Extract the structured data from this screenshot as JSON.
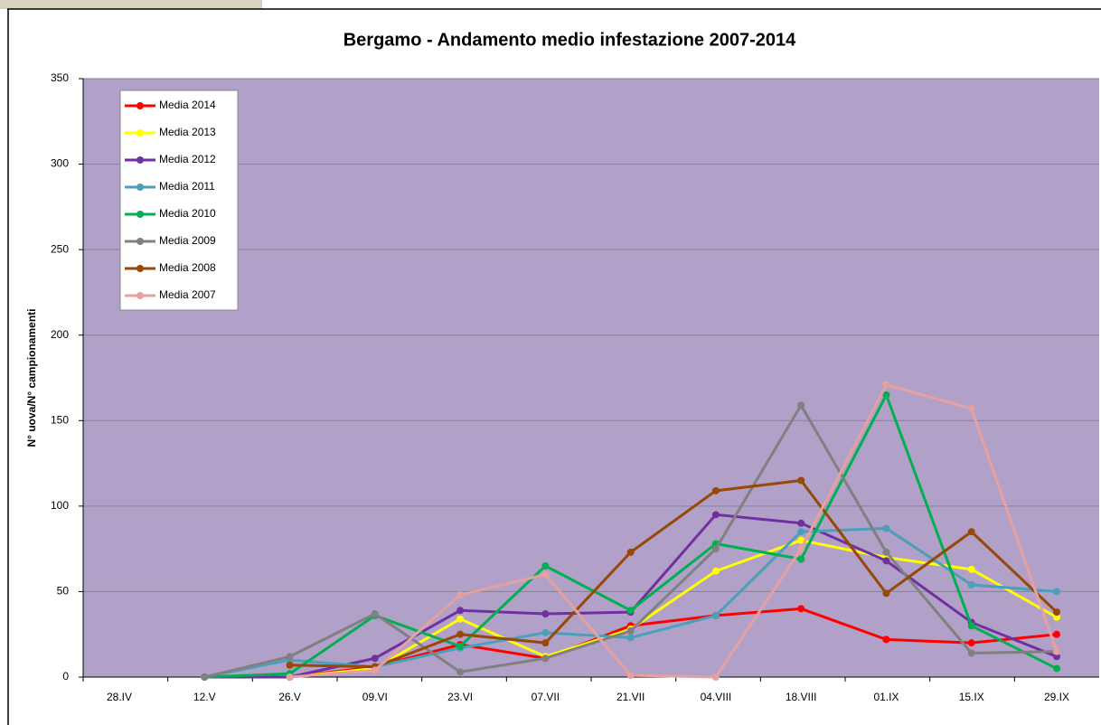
{
  "chart_data": {
    "type": "line",
    "title": "Bergamo - Andamento medio infestazione 2007-2014",
    "y_label": "N° uova/N° campionamenti",
    "categories": [
      "28.IV",
      "12.V",
      "26.V",
      "09.VI",
      "23.VI",
      "07.VII",
      "21.VII",
      "04.VIII",
      "18.VIII",
      "01.IX",
      "15.IX",
      "29.IX"
    ],
    "series": [
      {
        "name": "Media 2014",
        "color": "#ff0000",
        "values": [
          null,
          0,
          0,
          6,
          19,
          11,
          30,
          36,
          40,
          22,
          20,
          25
        ]
      },
      {
        "name": "Media 2013",
        "color": "#ffff00",
        "values": [
          null,
          0,
          0,
          5,
          34,
          12,
          28,
          62,
          80,
          70,
          63,
          35
        ]
      },
      {
        "name": "Media 2012",
        "color": "#7030a0",
        "values": [
          null,
          0,
          0,
          11,
          39,
          37,
          38,
          95,
          90,
          68,
          32,
          12
        ]
      },
      {
        "name": "Media 2011",
        "color": "#4aa0b8",
        "values": [
          null,
          0,
          10,
          6,
          17,
          26,
          23,
          36,
          85,
          87,
          54,
          50
        ]
      },
      {
        "name": "Media 2010",
        "color": "#00b050",
        "values": [
          null,
          0,
          2,
          36,
          18,
          65,
          39,
          78,
          69,
          165,
          30,
          5
        ]
      },
      {
        "name": "Media 2009",
        "color": "#808080",
        "values": [
          null,
          0,
          12,
          37,
          3,
          11,
          27,
          75,
          159,
          73,
          14,
          15
        ]
      },
      {
        "name": "Media 2008",
        "color": "#984807",
        "values": [
          null,
          null,
          7,
          6,
          25,
          20,
          73,
          109,
          115,
          49,
          85,
          38
        ]
      },
      {
        "name": "Media 2007",
        "color": "#e6a0a0",
        "values": [
          null,
          null,
          0,
          4,
          48,
          60,
          1,
          0,
          75,
          171,
          157,
          15
        ]
      }
    ],
    "ylim": [
      0,
      350
    ],
    "yticks": [
      0,
      50,
      100,
      150,
      200,
      250,
      300,
      350
    ],
    "grid": true,
    "legend": "upper left"
  }
}
